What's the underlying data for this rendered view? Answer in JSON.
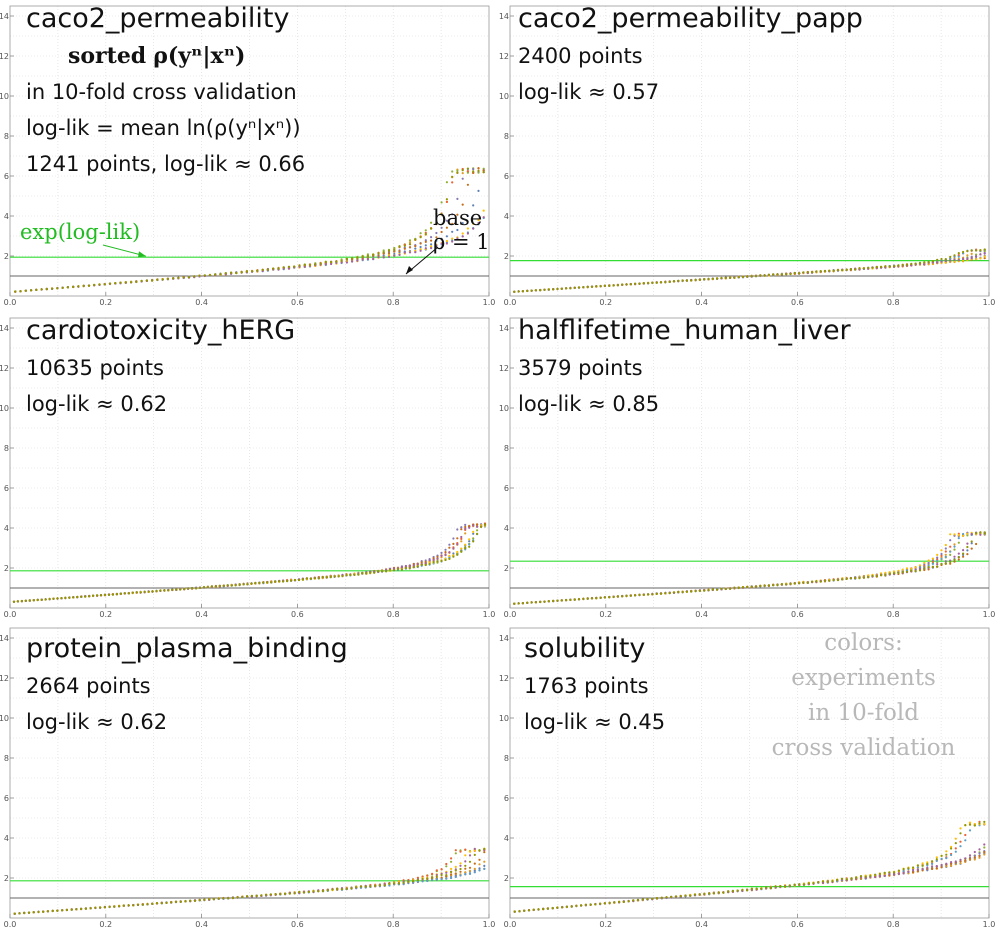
{
  "figure": {
    "legend_note": [
      "colors:",
      "experiments",
      "in 10-fold",
      "cross validation"
    ],
    "explain": {
      "line1_prefix": "sorted",
      "line1_formula": "ρ(yⁿ|xⁿ)",
      "line2": "in 10-fold cross validation",
      "line3": "log-lik = mean ln(ρ(yⁿ|xⁿ))"
    },
    "annotations": {
      "exp_label": "exp(log-lik)",
      "base_label": "base",
      "rho_label": "ρ = 1"
    }
  },
  "colors": {
    "series": [
      "#5E81B5",
      "#E19C24",
      "#8FB032",
      "#EB6235",
      "#8778B3",
      "#C56E1A",
      "#5D9EC7",
      "#FFBF00",
      "#A5609D",
      "#929600"
    ],
    "exp_line": "#33dd33",
    "base_line": "#666666",
    "grid": "#d8d8d8"
  },
  "chart_data": [
    {
      "type": "scatter",
      "title": "caco2_permeability",
      "points_label": "1241 points",
      "loglik_label": "log-lik ≈ 0.66",
      "loglik": 0.66,
      "exp_loglik": 1.94,
      "xlim": [
        0,
        1
      ],
      "ylim": [
        0,
        14.5
      ],
      "xticks": [
        0.0,
        0.2,
        0.4,
        0.6,
        0.8,
        1.0
      ],
      "yticks": [
        2,
        4,
        6,
        8,
        10,
        12,
        14
      ],
      "curve": {
        "k": 0.84,
        "xm": 0.96,
        "scale": 0.22,
        "a": 0.2,
        "b": 1.6,
        "spread": 0.14,
        "n": 90
      }
    },
    {
      "type": "scatter",
      "title": "caco2_permeability_papp",
      "points_label": "2400 points",
      "loglik_label": "log-lik ≈ 0.57",
      "loglik": 0.57,
      "exp_loglik": 1.77,
      "xlim": [
        0,
        1
      ],
      "ylim": [
        0,
        14.5
      ],
      "xticks": [
        0.0,
        0.2,
        0.4,
        0.6,
        0.8,
        1.0
      ],
      "yticks": [
        2,
        4,
        6,
        8,
        10,
        12,
        14
      ],
      "curve": {
        "k": 1.0,
        "xm": 1.0,
        "scale": 0.03,
        "a": 0.2,
        "b": 1.5,
        "spread": 0.12,
        "n": 110
      }
    },
    {
      "type": "scatter",
      "title": "cardiotoxicity_hERG",
      "points_label": "10635 points",
      "loglik_label": "log-lik ≈ 0.62",
      "loglik": 0.62,
      "exp_loglik": 1.86,
      "xlim": [
        0,
        1
      ],
      "ylim": [
        0,
        14.5
      ],
      "xticks": [
        0.0,
        0.2,
        0.4,
        0.6,
        0.8,
        1.0
      ],
      "yticks": [
        2,
        4,
        6,
        8,
        10,
        12,
        14
      ],
      "curve": {
        "k": 0.8,
        "xm": 0.96,
        "scale": 0.11,
        "a": 0.3,
        "b": 1.6,
        "spread": 0.05,
        "n": 120
      }
    },
    {
      "type": "scatter",
      "title": "halflifetime_human_liver",
      "points_label": "3579 points",
      "loglik_label": "log-lik ≈ 0.85",
      "loglik": 0.85,
      "exp_loglik": 2.34,
      "xlim": [
        0,
        1
      ],
      "ylim": [
        0,
        14.5
      ],
      "xticks": [
        0.0,
        0.2,
        0.4,
        0.6,
        0.8,
        1.0
      ],
      "yticks": [
        2,
        4,
        6,
        8,
        10,
        12,
        14
      ],
      "curve": {
        "k": 0.65,
        "xm": 0.95,
        "scale": 0.1,
        "a": 0.2,
        "b": 1.5,
        "spread": 0.08,
        "n": 110
      }
    },
    {
      "type": "scatter",
      "title": "protein_plasma_binding",
      "points_label": "2664 points",
      "loglik_label": "log-lik ≈ 0.62",
      "loglik": 0.62,
      "exp_loglik": 1.86,
      "xlim": [
        0,
        1
      ],
      "ylim": [
        0,
        14.5
      ],
      "xticks": [
        0.0,
        0.2,
        0.4,
        0.6,
        0.8,
        1.0
      ],
      "yticks": [
        2,
        4,
        6,
        8,
        10,
        12,
        14
      ],
      "curve": {
        "k": 0.8,
        "xm": 0.98,
        "scale": 0.08,
        "a": 0.2,
        "b": 1.6,
        "spread": 0.12,
        "n": 100
      }
    },
    {
      "type": "scatter",
      "title": "solubility",
      "points_label": "1763 points",
      "loglik_label": "log-lik ≈ 0.45",
      "loglik": 0.45,
      "exp_loglik": 1.57,
      "xlim": [
        0,
        1
      ],
      "ylim": [
        0,
        14.5
      ],
      "xticks": [
        0.0,
        0.2,
        0.4,
        0.6,
        0.8,
        1.0
      ],
      "yticks": [
        2,
        4,
        6,
        8,
        10,
        12,
        14
      ],
      "curve": {
        "k": 0.9,
        "xm": 1.0,
        "scale": 0.12,
        "a": 0.3,
        "b": 2.0,
        "spread": 0.12,
        "n": 100
      }
    }
  ]
}
